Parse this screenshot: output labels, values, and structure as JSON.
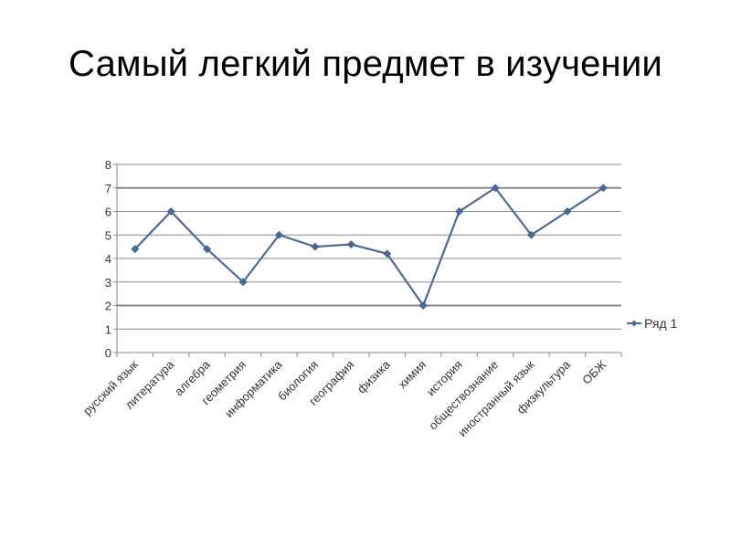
{
  "slide": {
    "title": "Самый легкий предмет в изучении"
  },
  "chart_data": {
    "type": "line",
    "title": "",
    "xlabel": "",
    "ylabel": "",
    "categories": [
      "русский язык",
      "литература",
      "алгебра",
      "геометрия",
      "информатика",
      "биология",
      "география",
      "физика",
      "химия",
      "история",
      "обществознание",
      "иностранный язык",
      "физкультура",
      "ОБЖ"
    ],
    "series": [
      {
        "name": "Ряд 1",
        "color": "#4a6a9b",
        "values": [
          4.4,
          6,
          4.4,
          3,
          5,
          4.5,
          4.6,
          4.2,
          2,
          6,
          7,
          5,
          6,
          7
        ]
      }
    ],
    "ylim": [
      0,
      8
    ],
    "yticks": [
      0,
      1,
      2,
      3,
      4,
      5,
      6,
      7,
      8
    ],
    "grid": true,
    "legend_position": "right"
  }
}
